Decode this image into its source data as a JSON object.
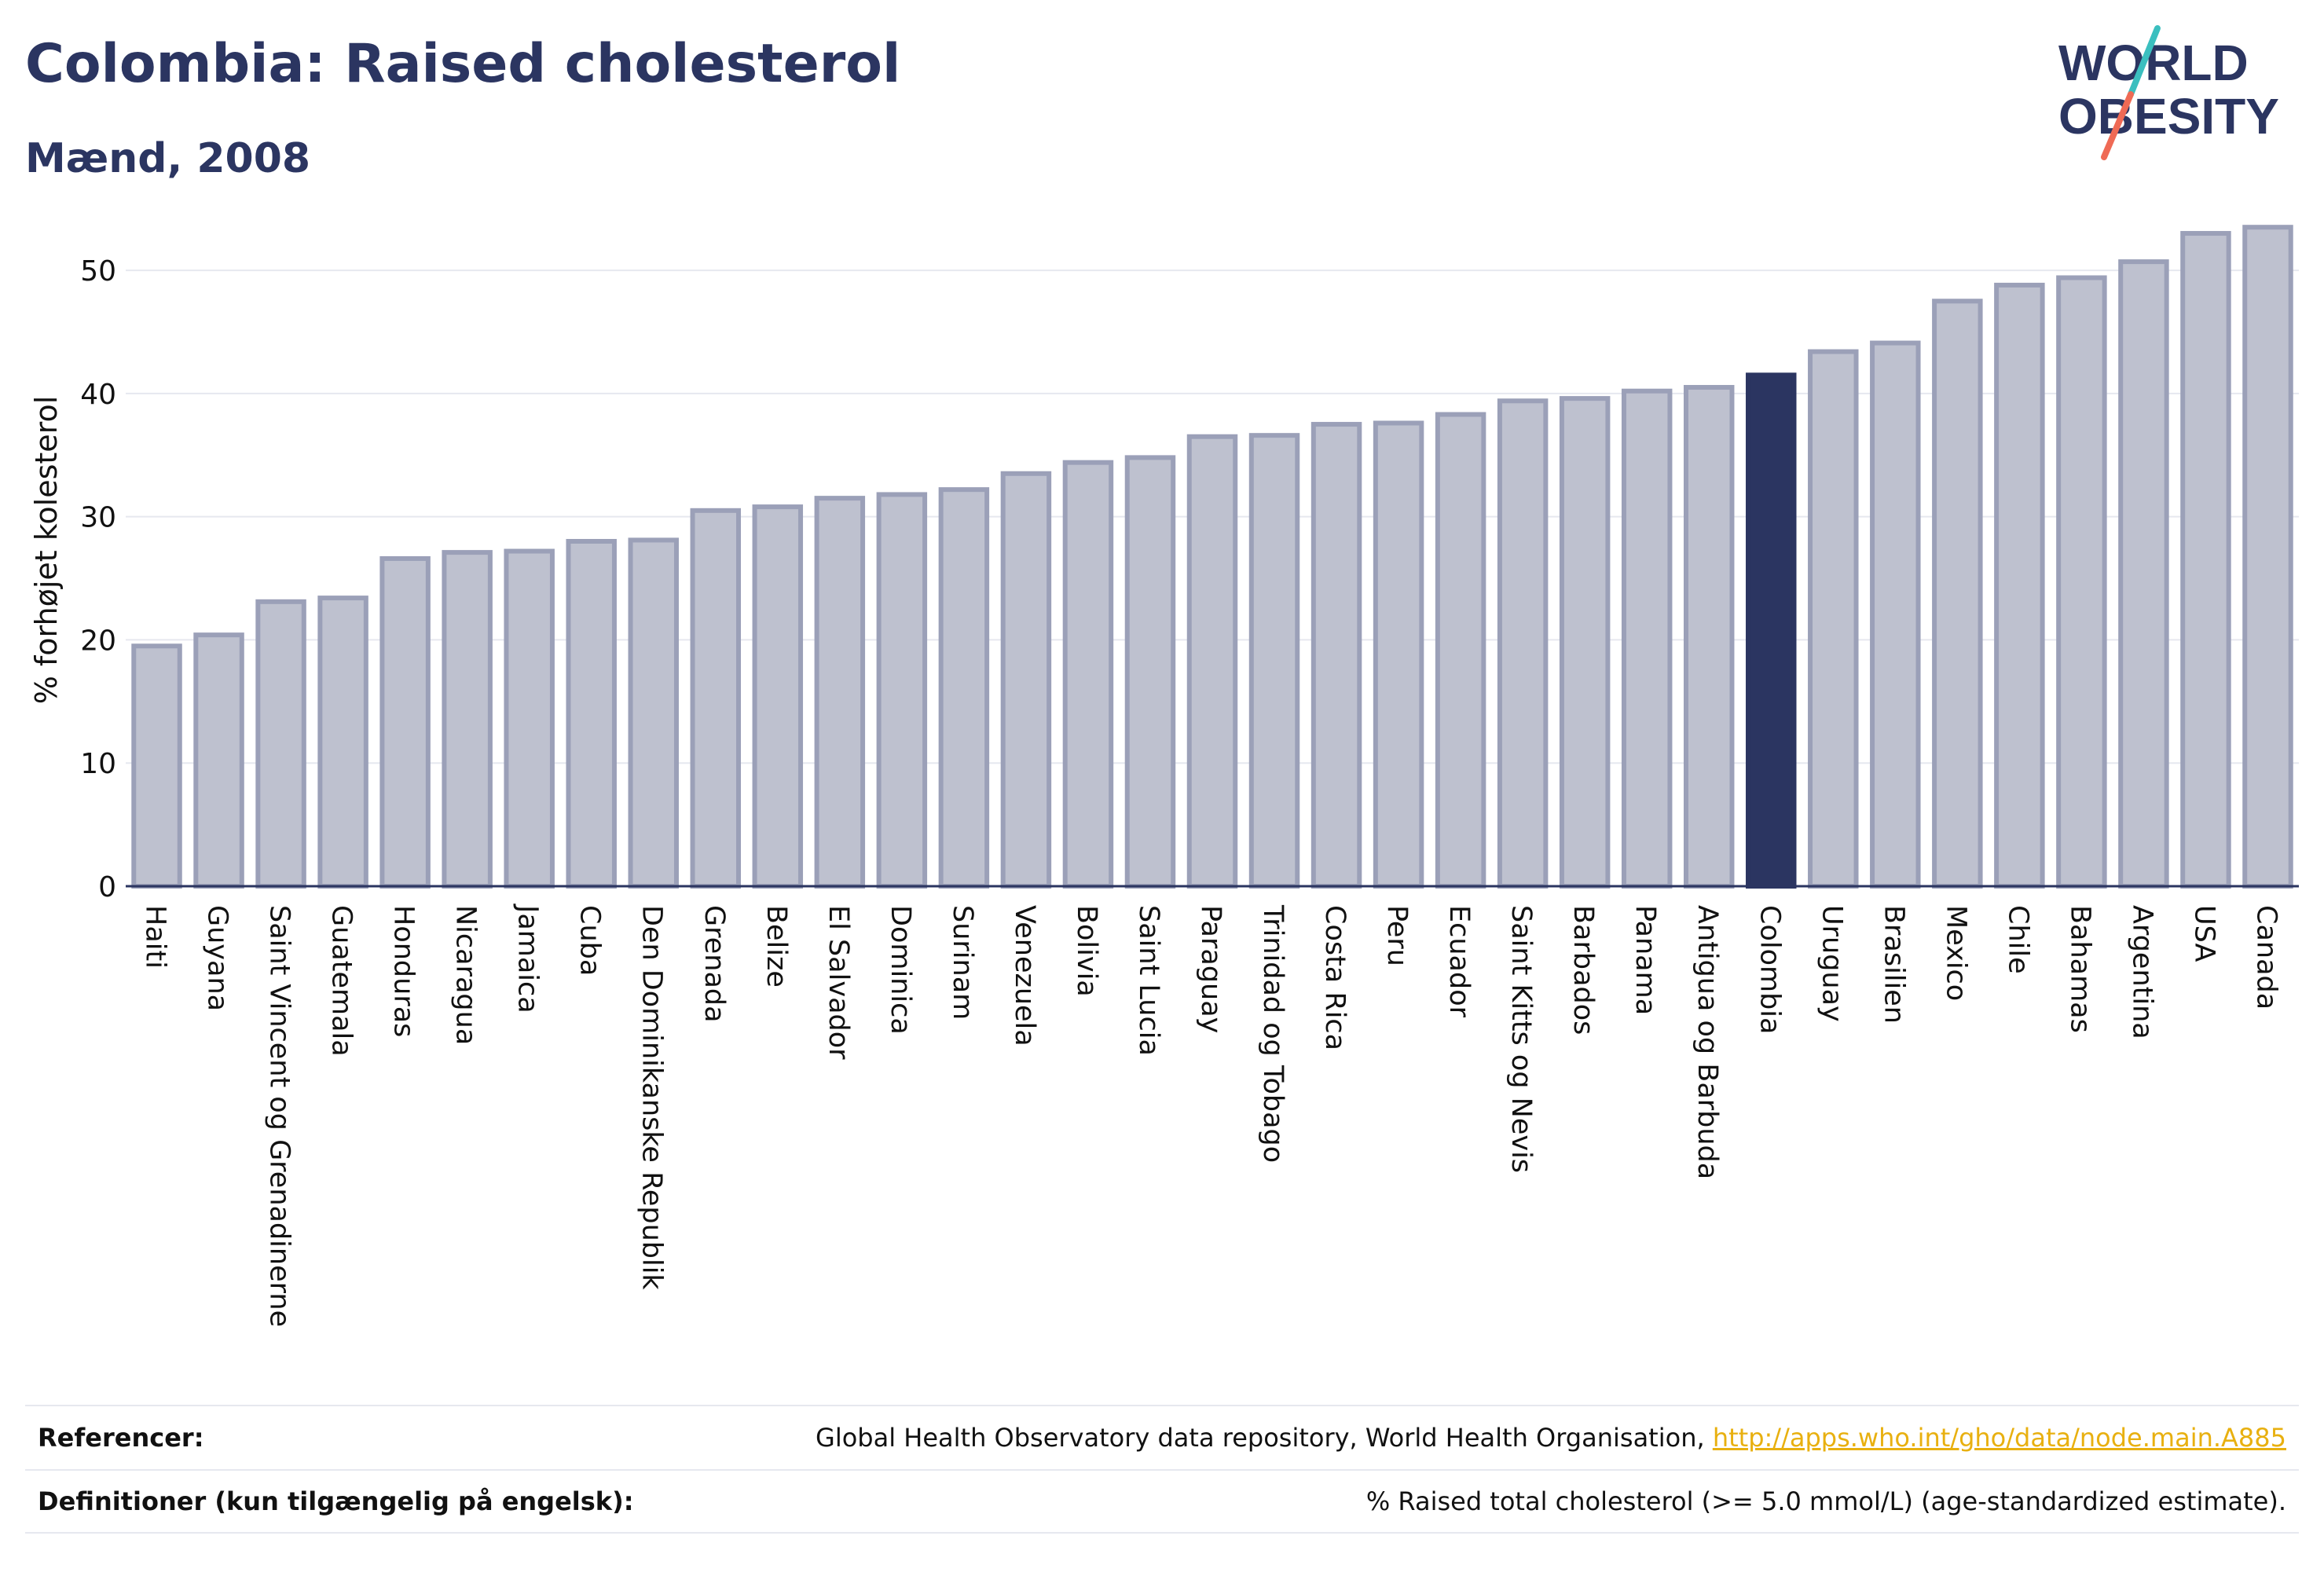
{
  "header": {
    "title": "Colombia: Raised cholesterol",
    "subtitle": "Mænd, 2008"
  },
  "logo": {
    "line1": "WORLD",
    "line2": "OBESITY",
    "slash_colors": [
      "#3bbfbf",
      "#ef6a55"
    ]
  },
  "colors": {
    "bar_default": "#bec1cf",
    "bar_default_stroke": "#9ba0b8",
    "bar_highlight": "#2b3561",
    "grid": "#e6e8ef",
    "axis_text": "#111111"
  },
  "chart_data": {
    "type": "bar",
    "title": "Colombia: Raised cholesterol",
    "subtitle": "Mænd, 2008",
    "ylabel": "% forhøjet kolesterol",
    "xlabel": "",
    "ylim": [
      0,
      56
    ],
    "yticks": [
      0,
      10,
      20,
      30,
      40,
      50
    ],
    "grid": true,
    "highlight": "Colombia",
    "categories": [
      "Haiti",
      "Guyana",
      "Saint Vincent og Grenadinerne",
      "Guatemala",
      "Honduras",
      "Nicaragua",
      "Jamaica",
      "Cuba",
      "Den Dominikanske Republik",
      "Grenada",
      "Belize",
      "El Salvador",
      "Dominica",
      "Surinam",
      "Venezuela",
      "Bolivia",
      "Saint Lucia",
      "Paraguay",
      "Trinidad og Tobago",
      "Costa Rica",
      "Peru",
      "Ecuador",
      "Saint Kitts og Nevis",
      "Barbados",
      "Panama",
      "Antigua og Barbuda",
      "Colombia",
      "Uruguay",
      "Brasilien",
      "Mexico",
      "Chile",
      "Bahamas",
      "Argentina",
      "USA",
      "Canada"
    ],
    "values": [
      19.5,
      20.4,
      23.1,
      23.4,
      26.6,
      27.1,
      27.2,
      28.0,
      28.1,
      30.5,
      30.8,
      31.5,
      31.8,
      32.2,
      33.5,
      34.4,
      34.8,
      36.5,
      36.6,
      37.5,
      37.6,
      38.3,
      39.4,
      39.6,
      40.2,
      40.5,
      41.5,
      43.4,
      44.1,
      47.5,
      48.8,
      49.4,
      50.7,
      53.0,
      53.5
    ]
  },
  "footer": {
    "references_label": "Referencer:",
    "references_text": "Global Health Observatory data repository, World Health Organisation,",
    "references_link": "http://apps.who.int/gho/data/node.main.A885",
    "definitions_label": "Definitioner (kun tilgængelig på engelsk):",
    "definitions_text": "% Raised total cholesterol (>= 5.0 mmol/L) (age-standardized estimate)."
  }
}
